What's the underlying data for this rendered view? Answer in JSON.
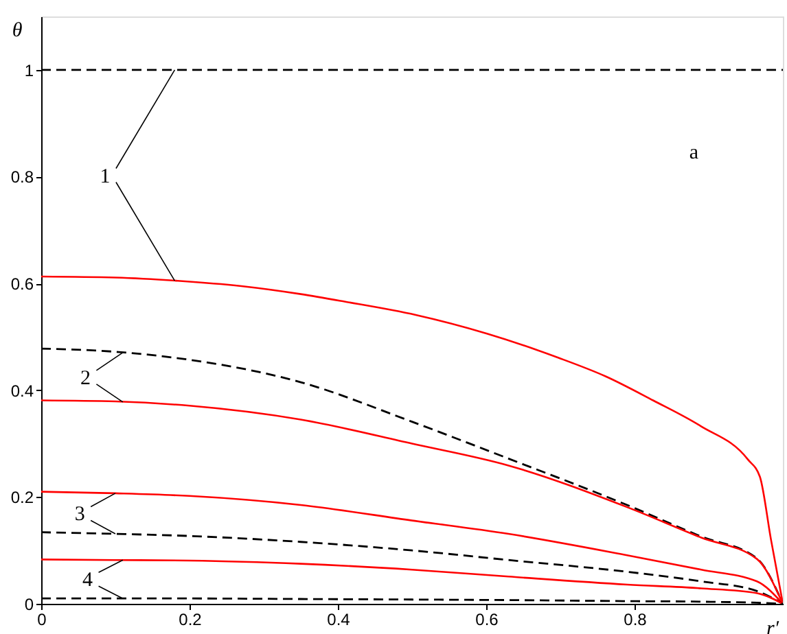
{
  "chart_data": {
    "type": "line",
    "xlabel": "r′",
    "ylabel": "θ",
    "xlim": [
      0,
      1
    ],
    "ylim": [
      0,
      1.1
    ],
    "xticks": [
      0,
      0.2,
      0.4,
      0.6,
      0.8
    ],
    "yticks": [
      0,
      0.2,
      0.4,
      0.6,
      0.8,
      1
    ],
    "x": [
      0,
      0.1,
      0.2,
      0.35,
      0.5,
      0.63,
      0.79,
      0.89,
      0.965,
      1
    ],
    "series": [
      {
        "color": "#000000",
        "line_style": "dashed",
        "values": [
          1,
          1,
          1,
          1,
          1,
          1,
          1,
          1,
          1,
          1
        ]
      },
      {
        "color": "#ff0000",
        "line_style": "solid",
        "x": [
          0,
          0.1,
          0.184,
          0.27,
          0.35,
          0.409,
          0.505,
          0.601,
          0.697,
          0.761,
          0.825,
          0.889,
          0.953,
          0.969,
          0.984,
          1
        ],
        "values": [
          0.613,
          0.611,
          0.605,
          0.595,
          0.58,
          0.566,
          0.541,
          0.506,
          0.461,
          0.426,
          0.381,
          0.333,
          0.27,
          0.238,
          0.12,
          0
        ]
      },
      {
        "color": "#000000",
        "line_style": "dashed",
        "values": [
          0.478,
          0.472,
          0.457,
          0.415,
          0.341,
          0.272,
          0.185,
          0.126,
          0.085,
          0
        ]
      },
      {
        "color": "#ff0000",
        "line_style": "solid",
        "values": [
          0.381,
          0.379,
          0.371,
          0.345,
          0.3,
          0.259,
          0.181,
          0.124,
          0.084,
          0
        ]
      },
      {
        "color": "#ff0000",
        "line_style": "solid",
        "values": [
          0.21,
          0.207,
          0.202,
          0.185,
          0.156,
          0.131,
          0.091,
          0.064,
          0.042,
          0
        ]
      },
      {
        "color": "#000000",
        "line_style": "dashed",
        "values": [
          0.134,
          0.131,
          0.127,
          0.116,
          0.1,
          0.082,
          0.06,
          0.042,
          0.024,
          0
        ]
      },
      {
        "color": "#ff0000",
        "line_style": "solid",
        "values": [
          0.083,
          0.082,
          0.081,
          0.075,
          0.064,
          0.051,
          0.036,
          0.029,
          0.02,
          0
        ]
      },
      {
        "color": "#000000",
        "line_style": "dashed",
        "values": [
          0.01,
          0.01,
          0.01,
          0.009,
          0.008,
          0.007,
          0.005,
          0.004,
          0.002,
          0
        ]
      }
    ],
    "annotations": [
      {
        "text": "1",
        "x": 0.18,
        "y": 0.605
      },
      {
        "text": "2",
        "x": 0.11,
        "y": 0.378
      },
      {
        "text": "3",
        "x": 0.1,
        "y": 0.207
      },
      {
        "text": "4",
        "x": 0.11,
        "y": 0.082
      },
      "a"
    ]
  }
}
